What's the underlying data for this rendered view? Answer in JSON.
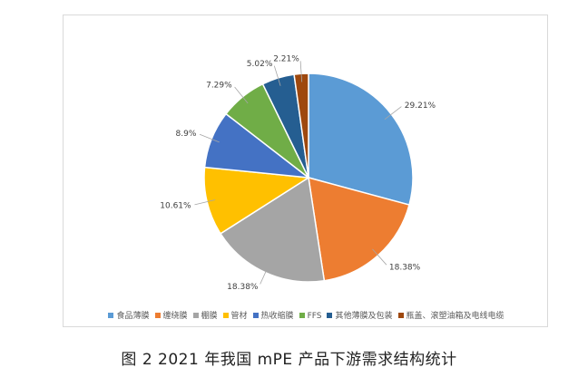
{
  "caption": "图 2  2021 年我国 mPE 产品下游需求结构统计",
  "chart_data": {
    "type": "pie",
    "title": "",
    "unit": "%",
    "slices": [
      {
        "name": "食品薄膜",
        "value": 29.21,
        "label": "29.21%",
        "color": "#5b9bd5"
      },
      {
        "name": "缠绕膜",
        "value": 18.38,
        "label": "18.38%",
        "color": "#ed7d31"
      },
      {
        "name": "棚膜",
        "value": 18.38,
        "label": "18.38%",
        "color": "#a5a5a5"
      },
      {
        "name": "管材",
        "value": 10.61,
        "label": "10.61%",
        "color": "#ffc000"
      },
      {
        "name": "热收缩膜",
        "value": 8.9,
        "label": "8.9%",
        "color": "#4472c4"
      },
      {
        "name": "FFS",
        "value": 7.29,
        "label": "7.29%",
        "color": "#70ad47"
      },
      {
        "name": "其他薄膜及包装",
        "value": 5.02,
        "label": "5.02%",
        "color": "#255e91"
      },
      {
        "name": "瓶盖、滚塑油箱及电线电缆",
        "value": 2.21,
        "label": "2.21%",
        "color": "#9e480e"
      }
    ],
    "legend_position": "bottom"
  }
}
